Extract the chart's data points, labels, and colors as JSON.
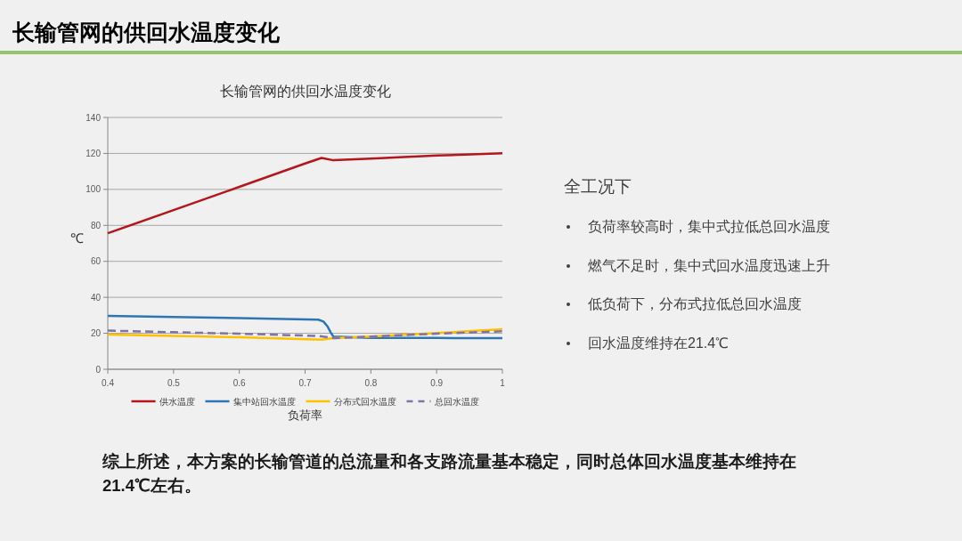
{
  "chart_data": {
    "type": "line",
    "title": "长输管网的供回水温度变化",
    "subtitle": "长输管网的供回水温度变化",
    "xlabel": "负荷率",
    "ylabel": "℃",
    "xlim": [
      0.4,
      1
    ],
    "xticks": [
      0.4,
      0.5,
      0.6,
      0.7,
      0.8,
      0.9,
      1
    ],
    "ylim": [
      0,
      140
    ],
    "yticks": [
      0,
      20,
      40,
      60,
      80,
      100,
      120,
      140
    ],
    "grid": "y",
    "legend": "bottom",
    "series": [
      {
        "name": "供水温度",
        "color": "#b4161b",
        "x": [
          0.4,
          0.5,
          0.6,
          0.7,
          0.725,
          0.743,
          0.8,
          0.9,
          1
        ],
        "values": [
          75.6,
          88.5,
          101.4,
          114.4,
          117.5,
          116.2,
          117.1,
          118.8,
          120.1
        ]
      },
      {
        "name": "集中站回水温度",
        "color": "#2e75b6",
        "x": [
          0.4,
          0.5,
          0.6,
          0.72,
          0.728,
          0.734,
          0.739,
          0.743,
          0.8,
          0.9,
          1
        ],
        "values": [
          29.7,
          29.1,
          28.4,
          27.6,
          26.5,
          23.9,
          20.5,
          18.2,
          17.4,
          17.4,
          17.3
        ]
      },
      {
        "name": "分布式回水温度",
        "color": "#ffc000",
        "x": [
          0.4,
          0.5,
          0.6,
          0.725,
          0.743,
          0.8,
          0.9,
          1
        ],
        "values": [
          19.3,
          18.5,
          17.8,
          16.5,
          17.3,
          18.2,
          20.1,
          22.3
        ]
      },
      {
        "name": "总回水温度",
        "color": "#8073a8",
        "line_style": "dashed",
        "x": [
          0.4,
          0.5,
          0.6,
          0.72,
          0.745,
          0.8,
          0.9,
          1
        ],
        "values": [
          21.5,
          20.6,
          19.8,
          18.5,
          17.3,
          18.2,
          19.8,
          21.1
        ]
      }
    ],
    "annotations": [
      "全工况下",
      "负荷率较高时，集中式拉低总回水温度",
      "燃气不足时，集中式回水温度迅速上升",
      "低负荷下，分布式拉低总回水温度",
      "回水温度维持在21.4℃",
      "综上所述，本方案的长输管道的总流量和各支路流量基本稳定，同时总体回水温度基本维持在21.4℃左右。"
    ]
  }
}
